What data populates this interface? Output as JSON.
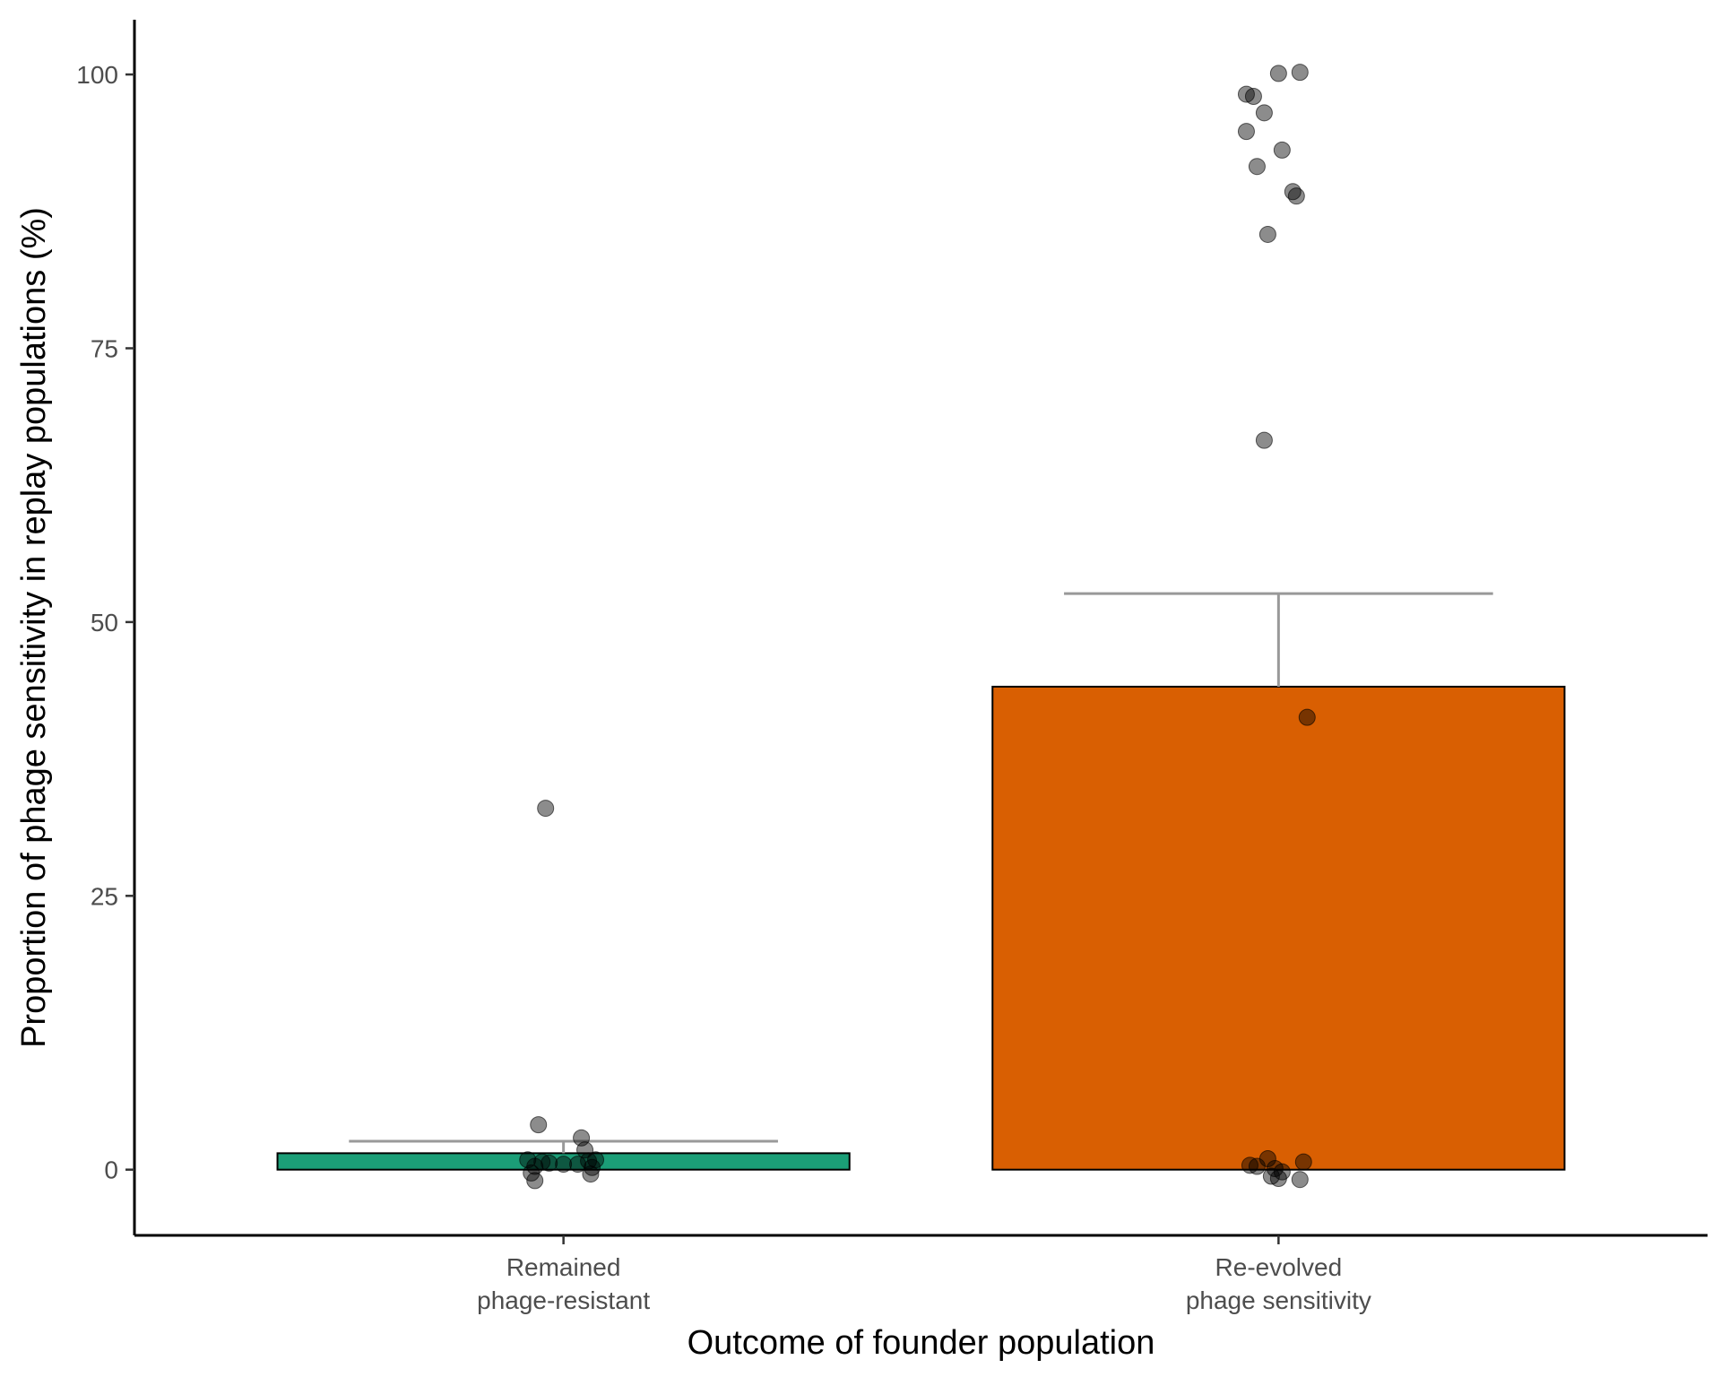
{
  "chart_data": {
    "type": "bar",
    "xlabel": "Outcome of founder population",
    "ylabel": "Proportion of phage sensitivity in replay populations (%)",
    "ylim": [
      -6,
      105
    ],
    "yticks": [
      0,
      25,
      50,
      75,
      100
    ],
    "grid": false,
    "categories": [
      {
        "label_lines": [
          "Remained",
          "phage-resistant"
        ],
        "value": 1.5,
        "error_upper": 2.6,
        "color": "#1b9e77"
      },
      {
        "label_lines": [
          "Re-evolved",
          "phage sensitivity"
        ],
        "value": 44.1,
        "error_upper": 52.6,
        "color": "#d95f02"
      }
    ],
    "points": [
      {
        "category": 0,
        "offset": -0.025,
        "y": 33.0
      },
      {
        "category": 0,
        "offset": -0.035,
        "y": 4.1
      },
      {
        "category": 0,
        "offset": 0.025,
        "y": 2.9
      },
      {
        "category": 0,
        "offset": 0.03,
        "y": 1.8
      },
      {
        "category": 0,
        "offset": -0.05,
        "y": 0.9
      },
      {
        "category": 0,
        "offset": -0.03,
        "y": 0.7
      },
      {
        "category": 0,
        "offset": -0.02,
        "y": 0.6
      },
      {
        "category": 0,
        "offset": 0.0,
        "y": 0.5
      },
      {
        "category": 0,
        "offset": 0.035,
        "y": 0.8
      },
      {
        "category": 0,
        "offset": 0.045,
        "y": 0.9
      },
      {
        "category": 0,
        "offset": -0.04,
        "y": 0.3
      },
      {
        "category": 0,
        "offset": 0.04,
        "y": 0.2
      },
      {
        "category": 0,
        "offset": -0.045,
        "y": -0.3
      },
      {
        "category": 0,
        "offset": 0.038,
        "y": -0.4
      },
      {
        "category": 0,
        "offset": -0.04,
        "y": -1.0
      },
      {
        "category": 0,
        "offset": 0.02,
        "y": 0.5
      },
      {
        "category": 1,
        "offset": 0.0,
        "y": 100.1
      },
      {
        "category": 1,
        "offset": 0.03,
        "y": 100.2
      },
      {
        "category": 1,
        "offset": -0.045,
        "y": 98.2
      },
      {
        "category": 1,
        "offset": -0.035,
        "y": 98.0
      },
      {
        "category": 1,
        "offset": -0.02,
        "y": 96.5
      },
      {
        "category": 1,
        "offset": -0.045,
        "y": 94.8
      },
      {
        "category": 1,
        "offset": 0.005,
        "y": 93.1
      },
      {
        "category": 1,
        "offset": -0.03,
        "y": 91.6
      },
      {
        "category": 1,
        "offset": 0.02,
        "y": 89.3
      },
      {
        "category": 1,
        "offset": 0.025,
        "y": 88.9
      },
      {
        "category": 1,
        "offset": -0.015,
        "y": 85.4
      },
      {
        "category": 1,
        "offset": -0.02,
        "y": 66.6
      },
      {
        "category": 1,
        "offset": 0.04,
        "y": 41.3
      },
      {
        "category": 1,
        "offset": -0.015,
        "y": 1.0
      },
      {
        "category": 1,
        "offset": 0.035,
        "y": 0.7
      },
      {
        "category": 1,
        "offset": -0.04,
        "y": 0.4
      },
      {
        "category": 1,
        "offset": -0.03,
        "y": 0.3
      },
      {
        "category": 1,
        "offset": -0.005,
        "y": 0.1
      },
      {
        "category": 1,
        "offset": 0.005,
        "y": -0.2
      },
      {
        "category": 1,
        "offset": -0.01,
        "y": -0.6
      },
      {
        "category": 1,
        "offset": 0.0,
        "y": -0.8
      },
      {
        "category": 1,
        "offset": 0.03,
        "y": -0.9
      }
    ],
    "point_color": "#000000",
    "point_opacity": 0.45,
    "error_color": "#999999"
  }
}
